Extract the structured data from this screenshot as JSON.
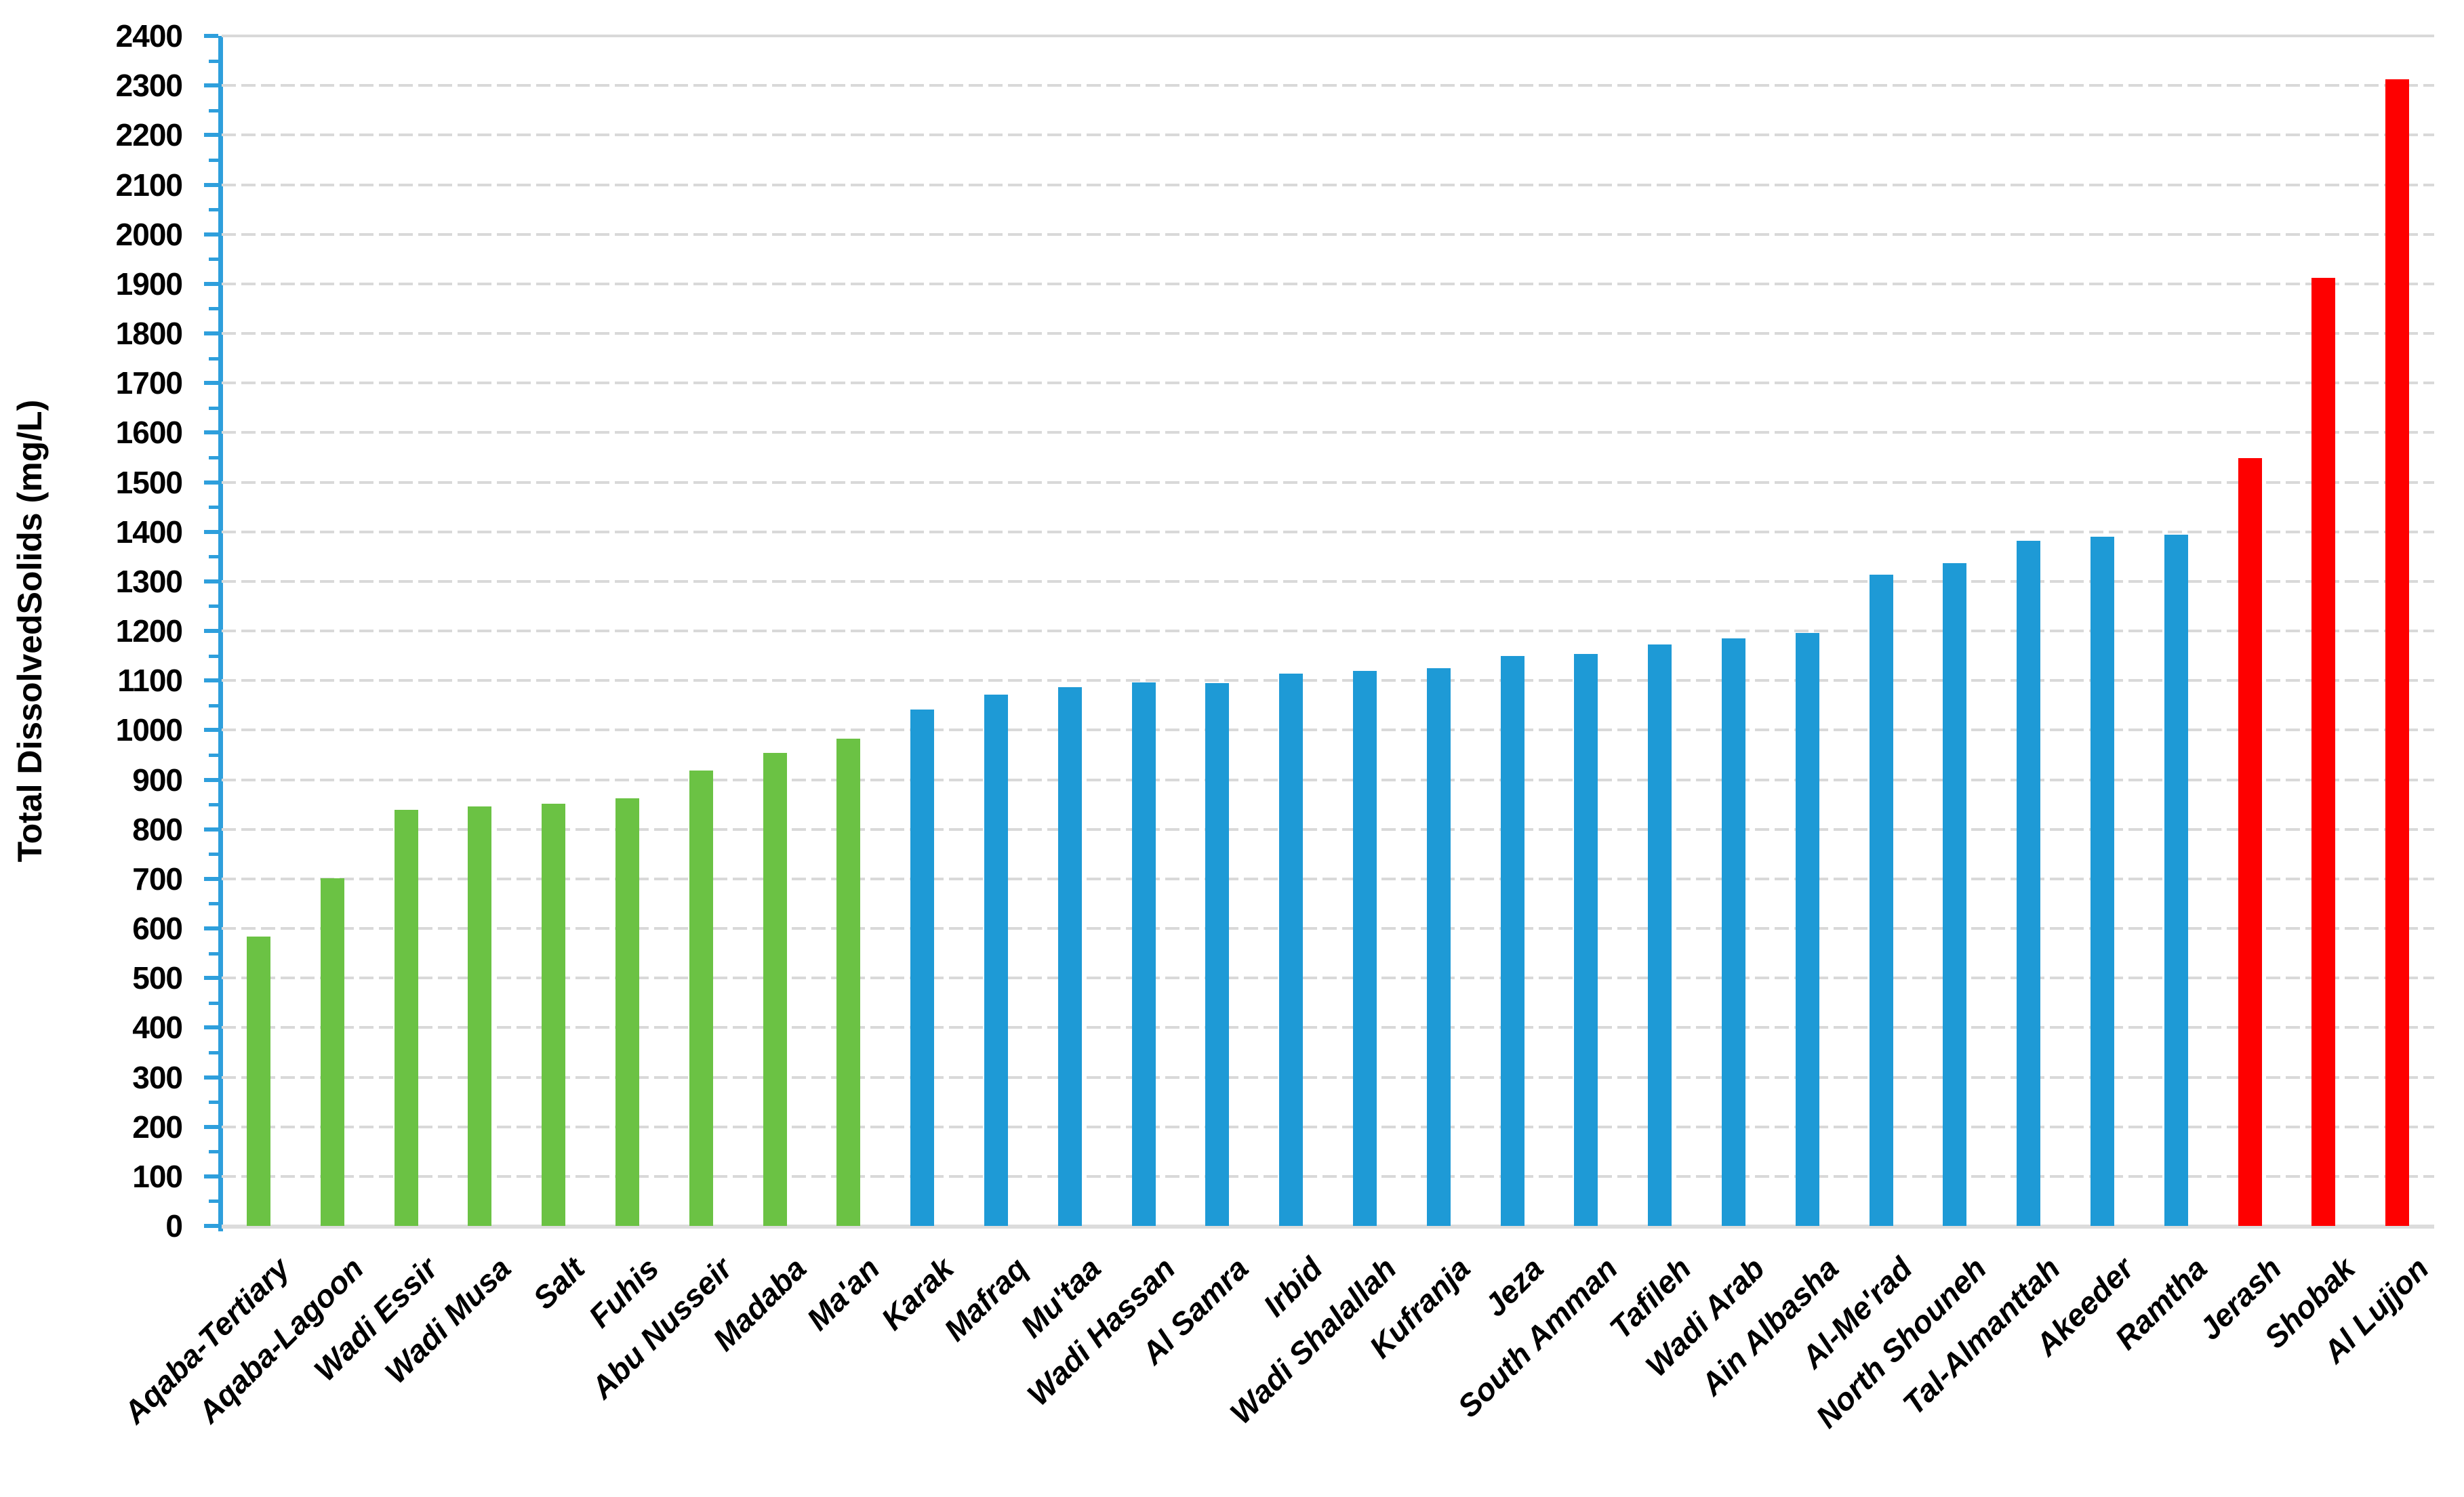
{
  "page": {
    "background": "#ffffff"
  },
  "chart_data": {
    "type": "bar",
    "title": "",
    "xlabel": "",
    "ylabel": "Total DissolvedSolids (mg/L)",
    "ylim": [
      0,
      2400
    ],
    "ytick_step": 100,
    "yminor_tick_step": 50,
    "grid": true,
    "legend": false,
    "categories": [
      "Aqaba-Tertiary",
      "Aqaba-Lagoon",
      "Wadi Essir",
      "Wadi Musa",
      "Salt",
      "Fuhis",
      "Abu Nusseir",
      "Madaba",
      "Ma'an",
      "Karak",
      "Mafraq",
      "Mu'taa",
      "Wadi Hassan",
      "Al Samra",
      "Irbid",
      "Wadi Shalallah",
      "Kufranja",
      "Jeza",
      "South Amman",
      "Tafileh",
      "Wadi Arab",
      "Ain Albasha",
      "Al-Me'rad",
      "North Shouneh",
      "Tal-Almanttah",
      "Akeeder",
      "Ramtha",
      "Jerash",
      "Shobak",
      "Al Lujjon"
    ],
    "values": [
      583,
      701,
      839,
      846,
      851,
      863,
      919,
      954,
      983,
      1042,
      1071,
      1086,
      1096,
      1095,
      1114,
      1119,
      1125,
      1149,
      1154,
      1173,
      1185,
      1196,
      1313,
      1337,
      1382,
      1390,
      1394,
      1548,
      1912,
      2313
    ],
    "bar_groups": [
      {
        "name": "group-1",
        "color": "#6bc244",
        "start": 0,
        "count": 9
      },
      {
        "name": "group-2",
        "color": "#1e9ad6",
        "start": 9,
        "count": 18
      },
      {
        "name": "group-3",
        "color": "#fe0000",
        "start": 27,
        "count": 3
      }
    ],
    "ytick_labels": [
      "0",
      "100",
      "200",
      "300",
      "400",
      "500",
      "600",
      "700",
      "800",
      "900",
      "1000",
      "1100",
      "1200",
      "1300",
      "1400",
      "1500",
      "1600",
      "1700",
      "1800",
      "1900",
      "2000",
      "2100",
      "2200",
      "2300",
      "2400"
    ],
    "axis_color": "#2e9fdc",
    "grid_color": "#d9d9d9",
    "text_color": "#000000"
  }
}
